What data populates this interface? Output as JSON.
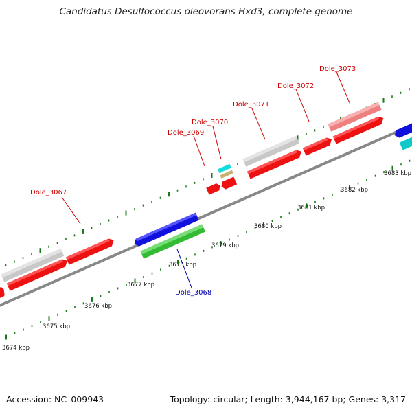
{
  "title": "Candidatus Desulfococcus oleovorans Hxd3, complete genome",
  "footer": {
    "accession": "Accession: NC_009943",
    "summary": "Topology: circular; Length: 3,944,167 bp; Genes: 3,317"
  },
  "scale_labels": [
    "3674 kbp",
    "3675 kbp",
    "3676 kbp",
    "3677 kbp",
    "3678 kbp",
    "3679 kbp",
    "3680 kbp",
    "3681 kbp",
    "3682 kbp",
    "3683 kbp"
  ],
  "gene_labels": [
    {
      "text": "Dole_3067",
      "color": "#cc0000"
    },
    {
      "text": "Dole_3068",
      "color": "#0000aa"
    },
    {
      "text": "Dole_3069",
      "color": "#cc0000"
    },
    {
      "text": "Dole_3070",
      "color": "#cc0000"
    },
    {
      "text": "Dole_3071",
      "color": "#cc0000"
    },
    {
      "text": "Dole_3072",
      "color": "#cc0000"
    },
    {
      "text": "Dole_3073",
      "color": "#cc0000"
    }
  ],
  "colors": {
    "red": "#ee1111",
    "gray": "#c8c8c8",
    "blue": "#1111dd",
    "green": "#33bb33",
    "cyan": "#11dddd",
    "salmon": "#ee8080",
    "tan": "#c8b070",
    "backbone": "#888888",
    "tick": "#1a7a1a"
  }
}
